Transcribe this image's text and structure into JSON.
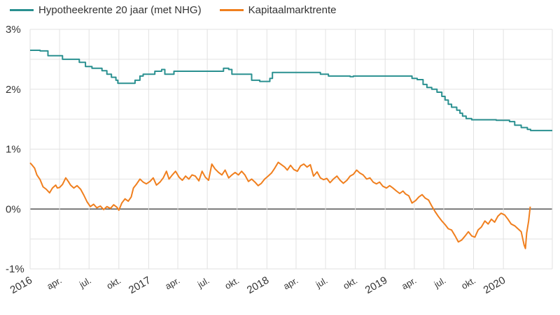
{
  "chart_data": {
    "type": "line",
    "legend_position": "top-left",
    "grid": true,
    "x_range": [
      "2016-01-01",
      "2020-05-31"
    ],
    "ylim": [
      -1,
      3
    ],
    "y_ticks": [
      {
        "value": 3,
        "label": "3%"
      },
      {
        "value": 2,
        "label": "2%"
      },
      {
        "value": 1,
        "label": "1%"
      },
      {
        "value": 0,
        "label": "0%"
      },
      {
        "value": -1,
        "label": "-1%"
      }
    ],
    "x_ticks": [
      {
        "date": "2016-01-01",
        "label": "2016"
      },
      {
        "date": "2016-04-01",
        "label": "apr."
      },
      {
        "date": "2016-07-01",
        "label": "jul."
      },
      {
        "date": "2016-10-01",
        "label": "okt."
      },
      {
        "date": "2017-01-01",
        "label": "2017"
      },
      {
        "date": "2017-04-01",
        "label": "apr."
      },
      {
        "date": "2017-07-01",
        "label": "jul."
      },
      {
        "date": "2017-10-01",
        "label": "okt."
      },
      {
        "date": "2018-01-01",
        "label": "2018"
      },
      {
        "date": "2018-04-01",
        "label": "apr."
      },
      {
        "date": "2018-07-01",
        "label": "jul."
      },
      {
        "date": "2018-10-01",
        "label": "okt."
      },
      {
        "date": "2019-01-01",
        "label": "2019"
      },
      {
        "date": "2019-04-01",
        "label": "apr."
      },
      {
        "date": "2019-07-01",
        "label": "jul."
      },
      {
        "date": "2019-10-01",
        "label": "okt."
      },
      {
        "date": "2020-01-01",
        "label": "2020"
      }
    ],
    "series": [
      {
        "name": "Hypotheekrente 20 jaar (met NHG)",
        "color": "#2a9090",
        "step": true,
        "points": [
          [
            "2016-01-01",
            2.65
          ],
          [
            "2016-02-01",
            2.64
          ],
          [
            "2016-02-25",
            2.56
          ],
          [
            "2016-04-10",
            2.5
          ],
          [
            "2016-06-01",
            2.45
          ],
          [
            "2016-06-20",
            2.38
          ],
          [
            "2016-07-10",
            2.35
          ],
          [
            "2016-08-10",
            2.31
          ],
          [
            "2016-08-25",
            2.25
          ],
          [
            "2016-09-08",
            2.2
          ],
          [
            "2016-09-22",
            2.15
          ],
          [
            "2016-09-28",
            2.1
          ],
          [
            "2016-11-20",
            2.15
          ],
          [
            "2016-12-05",
            2.22
          ],
          [
            "2016-12-15",
            2.25
          ],
          [
            "2017-01-20",
            2.3
          ],
          [
            "2017-02-10",
            2.33
          ],
          [
            "2017-02-20",
            2.25
          ],
          [
            "2017-03-20",
            2.3
          ],
          [
            "2017-08-20",
            2.35
          ],
          [
            "2017-09-05",
            2.33
          ],
          [
            "2017-09-15",
            2.25
          ],
          [
            "2017-11-15",
            2.15
          ],
          [
            "2017-12-10",
            2.13
          ],
          [
            "2018-01-10",
            2.18
          ],
          [
            "2018-01-18",
            2.28
          ],
          [
            "2018-06-15",
            2.25
          ],
          [
            "2018-07-10",
            2.22
          ],
          [
            "2018-09-15",
            2.21
          ],
          [
            "2018-09-25",
            2.22
          ],
          [
            "2019-03-25",
            2.18
          ],
          [
            "2019-04-10",
            2.16
          ],
          [
            "2019-04-28",
            2.08
          ],
          [
            "2019-05-10",
            2.03
          ],
          [
            "2019-05-25",
            2.0
          ],
          [
            "2019-06-10",
            1.95
          ],
          [
            "2019-06-25",
            1.88
          ],
          [
            "2019-07-05",
            1.82
          ],
          [
            "2019-07-15",
            1.75
          ],
          [
            "2019-07-25",
            1.7
          ],
          [
            "2019-08-10",
            1.65
          ],
          [
            "2019-08-20",
            1.6
          ],
          [
            "2019-08-28",
            1.55
          ],
          [
            "2019-09-08",
            1.51
          ],
          [
            "2019-09-25",
            1.49
          ],
          [
            "2019-12-10",
            1.48
          ],
          [
            "2020-01-20",
            1.46
          ],
          [
            "2020-02-05",
            1.4
          ],
          [
            "2020-02-25",
            1.36
          ],
          [
            "2020-03-15",
            1.33
          ],
          [
            "2020-03-25",
            1.31
          ],
          [
            "2020-05-31",
            1.31
          ]
        ]
      },
      {
        "name": "Kapitaalmarktrente",
        "color": "#f07f1e",
        "step": false,
        "points": [
          [
            "2016-01-01",
            0.77
          ],
          [
            "2016-01-08",
            0.73
          ],
          [
            "2016-01-15",
            0.68
          ],
          [
            "2016-01-22",
            0.57
          ],
          [
            "2016-02-01",
            0.49
          ],
          [
            "2016-02-10",
            0.37
          ],
          [
            "2016-02-20",
            0.33
          ],
          [
            "2016-03-01",
            0.27
          ],
          [
            "2016-03-10",
            0.35
          ],
          [
            "2016-03-20",
            0.4
          ],
          [
            "2016-03-25",
            0.35
          ],
          [
            "2016-04-01",
            0.36
          ],
          [
            "2016-04-10",
            0.41
          ],
          [
            "2016-04-20",
            0.52
          ],
          [
            "2016-04-28",
            0.46
          ],
          [
            "2016-05-05",
            0.4
          ],
          [
            "2016-05-15",
            0.35
          ],
          [
            "2016-05-25",
            0.39
          ],
          [
            "2016-06-05",
            0.33
          ],
          [
            "2016-06-15",
            0.23
          ],
          [
            "2016-06-25",
            0.12
          ],
          [
            "2016-07-05",
            0.04
          ],
          [
            "2016-07-15",
            0.08
          ],
          [
            "2016-07-25",
            0.02
          ],
          [
            "2016-08-05",
            0.05
          ],
          [
            "2016-08-15",
            -0.01
          ],
          [
            "2016-08-25",
            0.04
          ],
          [
            "2016-09-05",
            0.01
          ],
          [
            "2016-09-15",
            0.07
          ],
          [
            "2016-09-25",
            0.03
          ],
          [
            "2016-10-01",
            -0.02
          ],
          [
            "2016-10-10",
            0.1
          ],
          [
            "2016-10-20",
            0.17
          ],
          [
            "2016-10-30",
            0.13
          ],
          [
            "2016-11-08",
            0.2
          ],
          [
            "2016-11-15",
            0.35
          ],
          [
            "2016-11-25",
            0.42
          ],
          [
            "2016-12-05",
            0.5
          ],
          [
            "2016-12-15",
            0.45
          ],
          [
            "2016-12-25",
            0.42
          ],
          [
            "2017-01-05",
            0.46
          ],
          [
            "2017-01-15",
            0.52
          ],
          [
            "2017-01-25",
            0.4
          ],
          [
            "2017-02-05",
            0.45
          ],
          [
            "2017-02-15",
            0.52
          ],
          [
            "2017-02-25",
            0.63
          ],
          [
            "2017-03-05",
            0.5
          ],
          [
            "2017-03-15",
            0.57
          ],
          [
            "2017-03-25",
            0.63
          ],
          [
            "2017-04-05",
            0.53
          ],
          [
            "2017-04-15",
            0.48
          ],
          [
            "2017-04-25",
            0.55
          ],
          [
            "2017-05-05",
            0.5
          ],
          [
            "2017-05-15",
            0.57
          ],
          [
            "2017-05-25",
            0.55
          ],
          [
            "2017-06-05",
            0.47
          ],
          [
            "2017-06-15",
            0.63
          ],
          [
            "2017-06-25",
            0.53
          ],
          [
            "2017-07-05",
            0.48
          ],
          [
            "2017-07-15",
            0.75
          ],
          [
            "2017-07-25",
            0.67
          ],
          [
            "2017-08-05",
            0.61
          ],
          [
            "2017-08-15",
            0.57
          ],
          [
            "2017-08-25",
            0.65
          ],
          [
            "2017-09-05",
            0.52
          ],
          [
            "2017-09-15",
            0.57
          ],
          [
            "2017-09-25",
            0.61
          ],
          [
            "2017-10-05",
            0.57
          ],
          [
            "2017-10-15",
            0.63
          ],
          [
            "2017-10-25",
            0.57
          ],
          [
            "2017-11-05",
            0.46
          ],
          [
            "2017-11-15",
            0.5
          ],
          [
            "2017-11-25",
            0.45
          ],
          [
            "2017-12-05",
            0.39
          ],
          [
            "2017-12-15",
            0.43
          ],
          [
            "2017-12-25",
            0.5
          ],
          [
            "2018-01-05",
            0.55
          ],
          [
            "2018-01-15",
            0.6
          ],
          [
            "2018-01-25",
            0.68
          ],
          [
            "2018-02-05",
            0.78
          ],
          [
            "2018-02-15",
            0.74
          ],
          [
            "2018-02-25",
            0.7
          ],
          [
            "2018-03-05",
            0.65
          ],
          [
            "2018-03-15",
            0.73
          ],
          [
            "2018-03-25",
            0.66
          ],
          [
            "2018-04-05",
            0.63
          ],
          [
            "2018-04-15",
            0.72
          ],
          [
            "2018-04-25",
            0.75
          ],
          [
            "2018-05-05",
            0.7
          ],
          [
            "2018-05-15",
            0.74
          ],
          [
            "2018-05-25",
            0.55
          ],
          [
            "2018-06-05",
            0.62
          ],
          [
            "2018-06-15",
            0.52
          ],
          [
            "2018-06-25",
            0.49
          ],
          [
            "2018-07-05",
            0.51
          ],
          [
            "2018-07-15",
            0.44
          ],
          [
            "2018-07-25",
            0.5
          ],
          [
            "2018-08-05",
            0.55
          ],
          [
            "2018-08-15",
            0.48
          ],
          [
            "2018-08-25",
            0.43
          ],
          [
            "2018-09-05",
            0.48
          ],
          [
            "2018-09-15",
            0.55
          ],
          [
            "2018-09-25",
            0.58
          ],
          [
            "2018-10-05",
            0.65
          ],
          [
            "2018-10-15",
            0.6
          ],
          [
            "2018-10-25",
            0.57
          ],
          [
            "2018-11-05",
            0.5
          ],
          [
            "2018-11-15",
            0.52
          ],
          [
            "2018-11-25",
            0.45
          ],
          [
            "2018-12-05",
            0.42
          ],
          [
            "2018-12-15",
            0.45
          ],
          [
            "2018-12-25",
            0.38
          ],
          [
            "2019-01-05",
            0.35
          ],
          [
            "2019-01-15",
            0.39
          ],
          [
            "2019-01-25",
            0.35
          ],
          [
            "2019-02-05",
            0.3
          ],
          [
            "2019-02-15",
            0.26
          ],
          [
            "2019-02-25",
            0.3
          ],
          [
            "2019-03-05",
            0.25
          ],
          [
            "2019-03-15",
            0.22
          ],
          [
            "2019-03-25",
            0.1
          ],
          [
            "2019-04-05",
            0.14
          ],
          [
            "2019-04-15",
            0.2
          ],
          [
            "2019-04-25",
            0.24
          ],
          [
            "2019-05-05",
            0.18
          ],
          [
            "2019-05-15",
            0.15
          ],
          [
            "2019-05-25",
            0.05
          ],
          [
            "2019-06-05",
            -0.05
          ],
          [
            "2019-06-15",
            -0.13
          ],
          [
            "2019-06-25",
            -0.2
          ],
          [
            "2019-07-05",
            -0.26
          ],
          [
            "2019-07-15",
            -0.33
          ],
          [
            "2019-07-25",
            -0.35
          ],
          [
            "2019-08-05",
            -0.45
          ],
          [
            "2019-08-15",
            -0.55
          ],
          [
            "2019-08-25",
            -0.52
          ],
          [
            "2019-09-05",
            -0.45
          ],
          [
            "2019-09-15",
            -0.38
          ],
          [
            "2019-09-25",
            -0.45
          ],
          [
            "2019-10-05",
            -0.47
          ],
          [
            "2019-10-15",
            -0.35
          ],
          [
            "2019-10-25",
            -0.3
          ],
          [
            "2019-11-05",
            -0.2
          ],
          [
            "2019-11-15",
            -0.25
          ],
          [
            "2019-11-25",
            -0.17
          ],
          [
            "2019-12-05",
            -0.22
          ],
          [
            "2019-12-15",
            -0.12
          ],
          [
            "2019-12-25",
            -0.07
          ],
          [
            "2020-01-05",
            -0.1
          ],
          [
            "2020-01-15",
            -0.17
          ],
          [
            "2020-01-25",
            -0.25
          ],
          [
            "2020-02-05",
            -0.28
          ],
          [
            "2020-02-15",
            -0.33
          ],
          [
            "2020-02-25",
            -0.38
          ],
          [
            "2020-03-05",
            -0.6
          ],
          [
            "2020-03-09",
            -0.66
          ],
          [
            "2020-03-13",
            -0.4
          ],
          [
            "2020-03-19",
            -0.2
          ],
          [
            "2020-03-24",
            0.04
          ]
        ]
      }
    ]
  }
}
